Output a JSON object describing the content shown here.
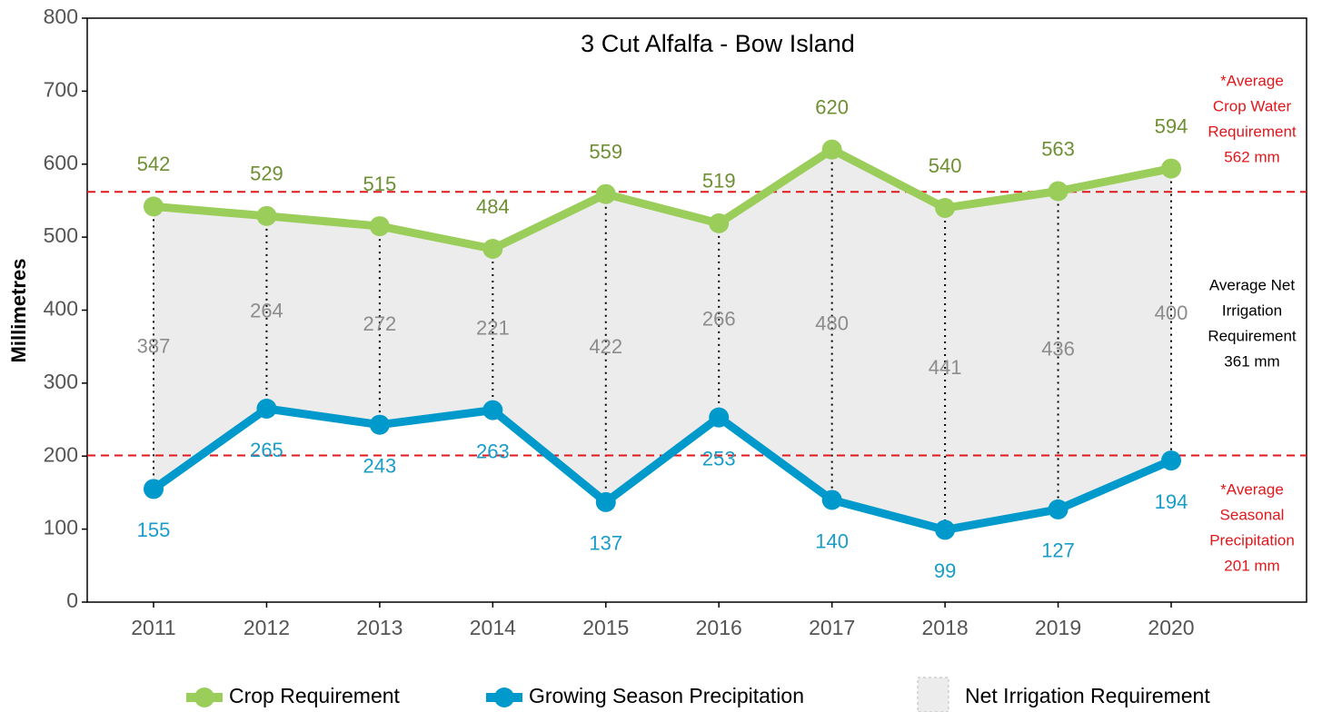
{
  "chart_data": {
    "type": "line",
    "title": "3 Cut Alfalfa -  Bow Island",
    "y_label": "Millimetres",
    "categories": [
      "2011",
      "2012",
      "2013",
      "2014",
      "2015",
      "2016",
      "2017",
      "2018",
      "2019",
      "2020"
    ],
    "series": [
      {
        "name": "Crop Requirement",
        "color": "#9acd5a",
        "label_color": "#6e8f34",
        "values": [
          542,
          529,
          515,
          484,
          559,
          519,
          620,
          540,
          563,
          594
        ]
      },
      {
        "name": "Growing Season Precipitation",
        "color": "#0099cc",
        "label_color": "#1a9cc9",
        "values": [
          155,
          265,
          243,
          263,
          137,
          253,
          140,
          99,
          127,
          194
        ]
      },
      {
        "name": "Net Irrigation Requirement",
        "color": "#ececec",
        "label_color": "#8c8c8c",
        "values": [
          387,
          264,
          272,
          221,
          422,
          266,
          480,
          441,
          436,
          400
        ]
      }
    ],
    "reference_lines": [
      {
        "value": 562,
        "color": "#e0181b",
        "annotation": [
          "*Average",
          "Crop Water",
          "Requirement",
          "562 mm"
        ]
      },
      {
        "value": 201,
        "color": "#e0181b",
        "annotation": [
          "*Average",
          "Seasonal",
          "Precipitation",
          "201 mm"
        ]
      }
    ],
    "net_annotation": [
      "Average Net",
      "Irrigation",
      "Requirement",
      "361 mm"
    ],
    "ylim": [
      0,
      800
    ],
    "yticks": [
      0,
      100,
      200,
      300,
      400,
      500,
      600,
      700,
      800
    ],
    "legend": "bottom"
  }
}
